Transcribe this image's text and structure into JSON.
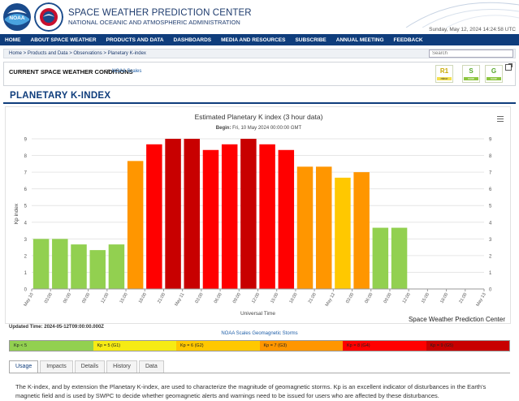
{
  "header": {
    "title": "SPACE WEATHER PREDICTION CENTER",
    "subtitle": "NATIONAL OCEANIC AND ATMOSPHERIC ADMINISTRATION",
    "date": "Sunday, May 12, 2024 14:24:58 UTC",
    "noaa_logo_text": "NOAA"
  },
  "nav": {
    "items": [
      "HOME",
      "ABOUT SPACE WEATHER",
      "PRODUCTS AND DATA",
      "DASHBOARDS",
      "MEDIA AND RESOURCES",
      "SUBSCRIBE",
      "ANNUAL MEETING",
      "FEEDBACK"
    ]
  },
  "breadcrumb": "Home > Products and Data > Observations > Planetary K-index",
  "search": {
    "placeholder": "Search"
  },
  "conditions": {
    "title": "CURRENT SPACE WEATHER CONDITIONS",
    "on": "on",
    "link": "NOAA Scales",
    "scales": [
      {
        "level": "R1",
        "tag": "minor"
      },
      {
        "level": "S",
        "tag": "none"
      },
      {
        "level": "G",
        "tag": "none"
      }
    ]
  },
  "page_title": "PLANETARY K-INDEX",
  "chart_data": {
    "type": "bar",
    "title": "Estimated Planetary K index (3 hour data)",
    "subtitle_label": "Begin:",
    "subtitle_value": "Fri, 10 May 2024 00:00:00 GMT",
    "ylabel": "Kp index",
    "xlabel": "Universal Time",
    "ylim": [
      0,
      9
    ],
    "yticks": [
      0,
      1,
      2,
      3,
      4,
      5,
      6,
      7,
      8,
      9
    ],
    "xtick_labels": [
      "May 10",
      "03:00",
      "06:00",
      "09:00",
      "12:00",
      "15:00",
      "18:00",
      "21:00",
      "May 11",
      "03:00",
      "06:00",
      "09:00",
      "12:00",
      "15:00",
      "18:00",
      "21:00",
      "May 12",
      "03:00",
      "06:00",
      "09:00",
      "12:00",
      "15:00",
      "18:00",
      "21:00",
      "May 13"
    ],
    "values": [
      3.0,
      3.0,
      2.67,
      2.33,
      2.67,
      7.67,
      8.67,
      9.0,
      9.0,
      8.33,
      8.67,
      9.0,
      8.67,
      8.33,
      7.33,
      7.33,
      6.67,
      7.0,
      3.67,
      3.67
    ],
    "colors": {
      "below5": "#92d050",
      "g1": "#f6eb14",
      "g2": "#ffc800",
      "g3": "#ff9600",
      "g4": "#ff0000",
      "g5": "#c80000"
    },
    "credit": "Space Weather Prediction Center",
    "grid": true
  },
  "updated": "Updated Time: 2024-05-12T09:00:00.000Z",
  "legend": {
    "heading": "NOAA Scales Geomagnetic Storms",
    "items": [
      {
        "label": "Kp < 5",
        "color": "#92d050"
      },
      {
        "label": "Kp = 5 (G1)",
        "color": "#f6eb14"
      },
      {
        "label": "Kp = 6 (G2)",
        "color": "#ffc800"
      },
      {
        "label": "Kp = 7 (G3)",
        "color": "#ff9600"
      },
      {
        "label": "Kp = 8 (G4)",
        "color": "#ff0000"
      },
      {
        "label": "Kp = 9 (G5)",
        "color": "#c80000"
      }
    ]
  },
  "tabs": [
    "Usage",
    "Impacts",
    "Details",
    "History",
    "Data"
  ],
  "usage_text": "The K-index, and by extension the Planetary K-index, are used to characterize the magnitude of geomagnetic storms. Kp is an excellent indicator of disturbances in the Earth's magnetic field and is used by SWPC to decide whether geomagnetic alerts and warnings need to be issued for users who are affected by these disturbances."
}
